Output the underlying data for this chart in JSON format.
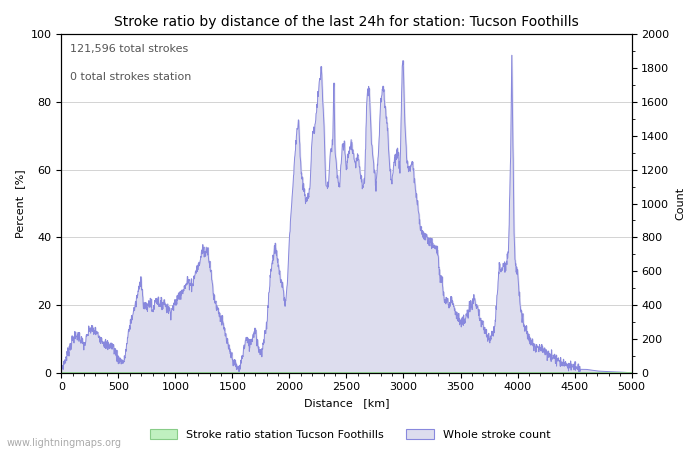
{
  "title": "Stroke ratio by distance of the last 24h for station: Tucson Foothills",
  "annotation_line1": "121,596 total strokes",
  "annotation_line2": "0 total strokes station",
  "xlabel": "Distance   [km]",
  "ylabel_left": "Percent  [%]",
  "ylabel_right": "Count",
  "xlim": [
    0,
    5000
  ],
  "ylim_left": [
    0,
    100
  ],
  "ylim_right": [
    0,
    2000
  ],
  "yticks_left": [
    0,
    20,
    40,
    60,
    80,
    100
  ],
  "yticks_right": [
    0,
    200,
    400,
    600,
    800,
    1000,
    1200,
    1400,
    1600,
    1800,
    2000
  ],
  "xticks": [
    0,
    500,
    1000,
    1500,
    2000,
    2500,
    3000,
    3500,
    4000,
    4500,
    5000
  ],
  "whole_count_line_color": "#8888dd",
  "whole_count_fill": "#ddddee",
  "stroke_ratio_fill": "#c0f0c0",
  "stroke_ratio_edge": "#88cc88",
  "background_color": "#ffffff",
  "plot_bg_color": "#ffffff",
  "grid_color": "#cccccc",
  "title_fontsize": 10,
  "label_fontsize": 8,
  "tick_fontsize": 8,
  "annot_fontsize": 8,
  "watermark": "www.lightningmaps.org",
  "legend_label_green": "Stroke ratio station Tucson Foothills",
  "legend_label_blue": "Whole stroke count"
}
